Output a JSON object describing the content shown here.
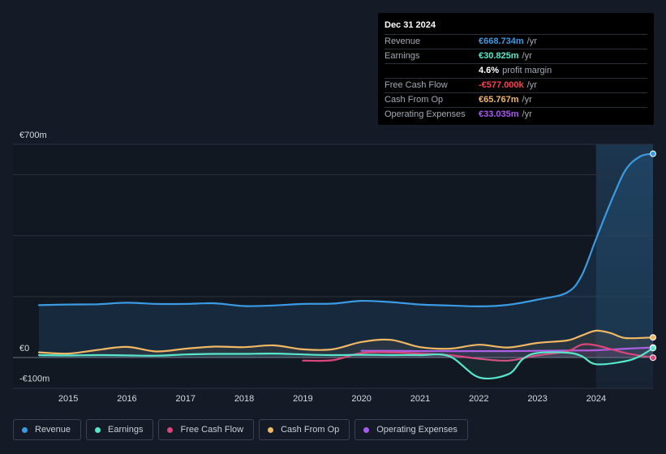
{
  "tooltip": {
    "date": "Dec 31 2024",
    "rows": [
      {
        "label": "Revenue",
        "value": "€668.734m",
        "suffix": "/yr",
        "color": "#3b9ae1"
      },
      {
        "label": "Earnings",
        "value": "€30.825m",
        "suffix": "/yr",
        "color": "#58e6cc"
      },
      {
        "label": "",
        "value": "4.6%",
        "suffix": "profit margin",
        "color": "#ffffff"
      },
      {
        "label": "Free Cash Flow",
        "value": "-€577.000k",
        "suffix": "/yr",
        "color": "#f0454e"
      },
      {
        "label": "Cash From Op",
        "value": "€65.767m",
        "suffix": "/yr",
        "color": "#f0b865"
      },
      {
        "label": "Operating Expenses",
        "value": "€33.035m",
        "suffix": "/yr",
        "color": "#a65bf0"
      }
    ]
  },
  "legend": [
    {
      "label": "Revenue",
      "color": "#3b9ae1"
    },
    {
      "label": "Earnings",
      "color": "#58e6cc"
    },
    {
      "label": "Free Cash Flow",
      "color": "#d9467a"
    },
    {
      "label": "Cash From Op",
      "color": "#f0b865"
    },
    {
      "label": "Operating Expenses",
      "color": "#a65bf0"
    }
  ],
  "chart_data": {
    "type": "line",
    "title": "",
    "y_unit": "€m",
    "ylim": [
      -100,
      700
    ],
    "y_tick_labels": [
      {
        "value": 700,
        "label": "€700m"
      },
      {
        "value": 0,
        "label": "€0"
      },
      {
        "value": -100,
        "label": "-€100m"
      }
    ],
    "xlim": [
      2014.5,
      2025.0
    ],
    "x_ticks": [
      2015,
      2016,
      2017,
      2018,
      2019,
      2020,
      2021,
      2022,
      2023,
      2024
    ],
    "highlight_from": 2024.0,
    "series": [
      {
        "name": "Revenue",
        "color": "#3b9ae1",
        "fill": true,
        "points": [
          [
            2014.5,
            172
          ],
          [
            2015,
            174
          ],
          [
            2015.5,
            175
          ],
          [
            2016,
            180
          ],
          [
            2016.5,
            176
          ],
          [
            2017,
            176
          ],
          [
            2017.5,
            178
          ],
          [
            2018,
            169
          ],
          [
            2018.5,
            171
          ],
          [
            2019,
            176
          ],
          [
            2019.5,
            177
          ],
          [
            2020,
            186
          ],
          [
            2020.5,
            182
          ],
          [
            2021,
            174
          ],
          [
            2021.5,
            171
          ],
          [
            2022,
            168
          ],
          [
            2022.5,
            173
          ],
          [
            2023,
            190
          ],
          [
            2023.5,
            213
          ],
          [
            2023.75,
            268
          ],
          [
            2024,
            390
          ],
          [
            2024.25,
            510
          ],
          [
            2024.5,
            615
          ],
          [
            2024.75,
            660
          ],
          [
            2024.97,
            669
          ]
        ]
      },
      {
        "name": "Earnings",
        "color": "#58e6cc",
        "fill": false,
        "points": [
          [
            2014.5,
            8
          ],
          [
            2015,
            7
          ],
          [
            2015.5,
            8
          ],
          [
            2016,
            7
          ],
          [
            2016.5,
            6
          ],
          [
            2017,
            10
          ],
          [
            2017.5,
            12
          ],
          [
            2018,
            12
          ],
          [
            2018.5,
            13
          ],
          [
            2019,
            10
          ],
          [
            2019.5,
            8
          ],
          [
            2020,
            9
          ],
          [
            2020.5,
            8
          ],
          [
            2021,
            8
          ],
          [
            2021.5,
            4
          ],
          [
            2022,
            -65
          ],
          [
            2022.5,
            -55
          ],
          [
            2022.75,
            -5
          ],
          [
            2023,
            15
          ],
          [
            2023.5,
            16
          ],
          [
            2023.75,
            5
          ],
          [
            2024,
            -22
          ],
          [
            2024.5,
            -12
          ],
          [
            2024.75,
            5
          ],
          [
            2024.97,
            31
          ]
        ]
      },
      {
        "name": "Free Cash Flow",
        "color": "#d9467a",
        "fill": false,
        "points": [
          [
            2019,
            -10
          ],
          [
            2019.5,
            -9
          ],
          [
            2020,
            15
          ],
          [
            2020.5,
            17
          ],
          [
            2021,
            13
          ],
          [
            2021.5,
            8
          ],
          [
            2022,
            -4
          ],
          [
            2022.5,
            -10
          ],
          [
            2023,
            7
          ],
          [
            2023.5,
            20
          ],
          [
            2023.75,
            42
          ],
          [
            2024,
            40
          ],
          [
            2024.5,
            15
          ],
          [
            2024.97,
            -0.6
          ]
        ]
      },
      {
        "name": "Cash From Op",
        "color": "#f0b865",
        "fill": false,
        "points": [
          [
            2014.5,
            17
          ],
          [
            2015,
            13
          ],
          [
            2015.5,
            25
          ],
          [
            2016,
            35
          ],
          [
            2016.5,
            20
          ],
          [
            2017,
            29
          ],
          [
            2017.5,
            36
          ],
          [
            2018,
            34
          ],
          [
            2018.5,
            40
          ],
          [
            2019,
            27
          ],
          [
            2019.5,
            27
          ],
          [
            2020,
            51
          ],
          [
            2020.5,
            58
          ],
          [
            2021,
            34
          ],
          [
            2021.5,
            29
          ],
          [
            2022,
            42
          ],
          [
            2022.5,
            33
          ],
          [
            2023,
            48
          ],
          [
            2023.5,
            56
          ],
          [
            2023.75,
            72
          ],
          [
            2024,
            88
          ],
          [
            2024.25,
            80
          ],
          [
            2024.5,
            64
          ],
          [
            2024.97,
            66
          ]
        ]
      },
      {
        "name": "Operating Expenses",
        "color": "#a65bf0",
        "fill": false,
        "points": [
          [
            2020,
            22
          ],
          [
            2020.5,
            22
          ],
          [
            2021,
            21
          ],
          [
            2021.5,
            21
          ],
          [
            2022,
            21
          ],
          [
            2022.5,
            21
          ],
          [
            2023,
            22
          ],
          [
            2023.5,
            23
          ],
          [
            2024,
            24
          ],
          [
            2024.5,
            29
          ],
          [
            2024.97,
            33
          ]
        ]
      }
    ]
  }
}
